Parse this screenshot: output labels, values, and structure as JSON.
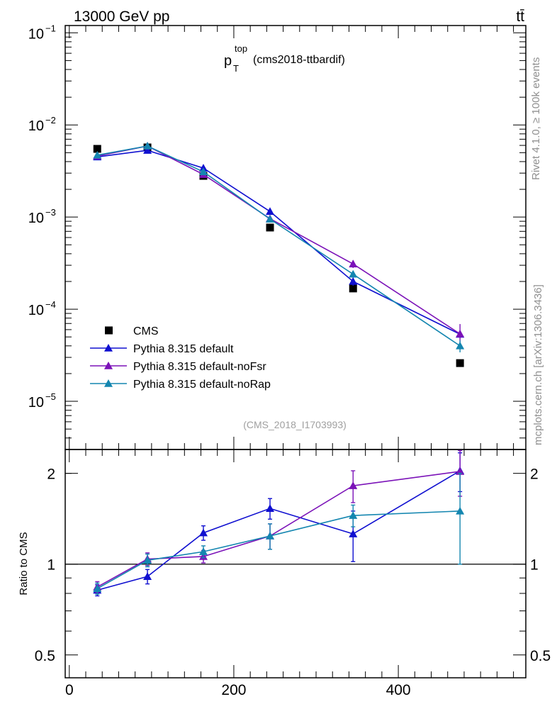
{
  "header": {
    "energy_label": "13000 GeV pp",
    "process_label": "tt̄"
  },
  "plot": {
    "title_main": "p",
    "title_sub": "T",
    "title_sup": "top",
    "title_tag": "(cms2018-ttbardif)",
    "watermark": "(CMS_2018_I1703993)",
    "side_label_top": "Rivet 4.1.0, ≥ 100k events",
    "side_label_bottom": "mcplots.cern.ch [arXiv:1306.3436]",
    "ratio_ylabel": "Ratio to CMS"
  },
  "colors": {
    "data": "#000000",
    "default": "#1010d0",
    "noFsr": "#7b12b8",
    "noRap": "#1486b0",
    "axis": "#000000",
    "watermark": "#a0a0a0",
    "side": "#909090"
  },
  "chart_data": [
    {
      "type": "line",
      "title": "p_T^top (cms2018-ttbardif)",
      "yscale": "log",
      "xlim": [
        -5,
        555
      ],
      "ylim": [
        3e-06,
        0.12
      ],
      "x_ticks": [
        0,
        200,
        400
      ],
      "y_ticks": [
        {
          "value": 0.1,
          "base": "10",
          "exp": "−1"
        },
        {
          "value": 0.01,
          "base": "10",
          "exp": "−2"
        },
        {
          "value": 0.001,
          "base": "10",
          "exp": "−3"
        },
        {
          "value": 0.0001,
          "base": "10",
          "exp": "−4"
        },
        {
          "value": 1e-05,
          "base": "10",
          "exp": "−5"
        }
      ],
      "x": [
        34,
        95,
        163,
        244,
        345,
        475
      ],
      "series": [
        {
          "name": "CMS",
          "key": "data",
          "marker": "square",
          "values": [
            0.0055,
            0.0057,
            0.0028,
            0.00077,
            0.000168,
            2.6e-05
          ]
        },
        {
          "name": "Pythia 8.315 default",
          "key": "default",
          "marker": "triangle",
          "values": [
            0.0045,
            0.0053,
            0.0034,
            0.00115,
            0.0002,
            5.35e-05
          ],
          "err": [
            0.0001,
            0.0001,
            0.0001,
            5e-05,
            2e-05,
            5e-06
          ]
        },
        {
          "name": "Pythia 8.315 default-noFsr",
          "key": "noFsr",
          "marker": "triangle",
          "values": [
            0.0046,
            0.0059,
            0.0029,
            0.00096,
            0.00031,
            5.4e-05
          ],
          "err": [
            0.0001,
            0.0001,
            0.0001,
            5e-05,
            3e-05,
            1.5e-05
          ]
        },
        {
          "name": "Pythia 8.315 default-noRap",
          "key": "noRap",
          "marker": "triangle",
          "values": [
            0.0047,
            0.0059,
            0.0031,
            0.00095,
            0.00024,
            4e-05
          ],
          "err": [
            0.0001,
            0.0001,
            0.0001,
            5e-05,
            2e-05,
            6e-06
          ]
        }
      ],
      "legend_position": "bottom-left"
    },
    {
      "type": "line",
      "title": "Ratio to CMS",
      "ylabel": "Ratio to CMS",
      "yscale": "log",
      "xlim": [
        -5,
        555
      ],
      "ylim": [
        0.42,
        2.4
      ],
      "x_ticks": [
        0,
        200,
        400
      ],
      "y_ticks": [
        {
          "value": 2,
          "label": "2"
        },
        {
          "value": 1,
          "label": "1"
        },
        {
          "value": 0.5,
          "label": "0.5"
        }
      ],
      "reference_line": 1,
      "x": [
        34,
        95,
        163,
        244,
        345,
        475
      ],
      "series": [
        {
          "name": "Pythia 8.315 default",
          "key": "default",
          "values": [
            0.82,
            0.91,
            1.27,
            1.53,
            1.26,
            2.04
          ],
          "err_up": [
            0.035,
            0.05,
            0.07,
            0.12,
            0.24,
            0.3
          ],
          "err_down": [
            0.035,
            0.05,
            0.07,
            0.12,
            0.24,
            0.3
          ]
        },
        {
          "name": "Pythia 8.315 default-noFsr",
          "key": "noFsr",
          "values": [
            0.84,
            1.04,
            1.06,
            1.24,
            1.82,
            2.03
          ],
          "err_up": [
            0.035,
            0.05,
            0.05,
            0.12,
            0.22,
            0.35
          ],
          "err_down": [
            0.035,
            0.05,
            0.05,
            0.12,
            0.22,
            0.35
          ]
        },
        {
          "name": "Pythia 8.315 default-noRap",
          "key": "noRap",
          "values": [
            0.83,
            1.03,
            1.1,
            1.24,
            1.45,
            1.5
          ],
          "err_up": [
            0.035,
            0.05,
            0.05,
            0.12,
            0.12,
            0.5
          ],
          "err_down": [
            0.035,
            0.05,
            0.05,
            0.12,
            0.12,
            0.5
          ]
        }
      ]
    }
  ]
}
